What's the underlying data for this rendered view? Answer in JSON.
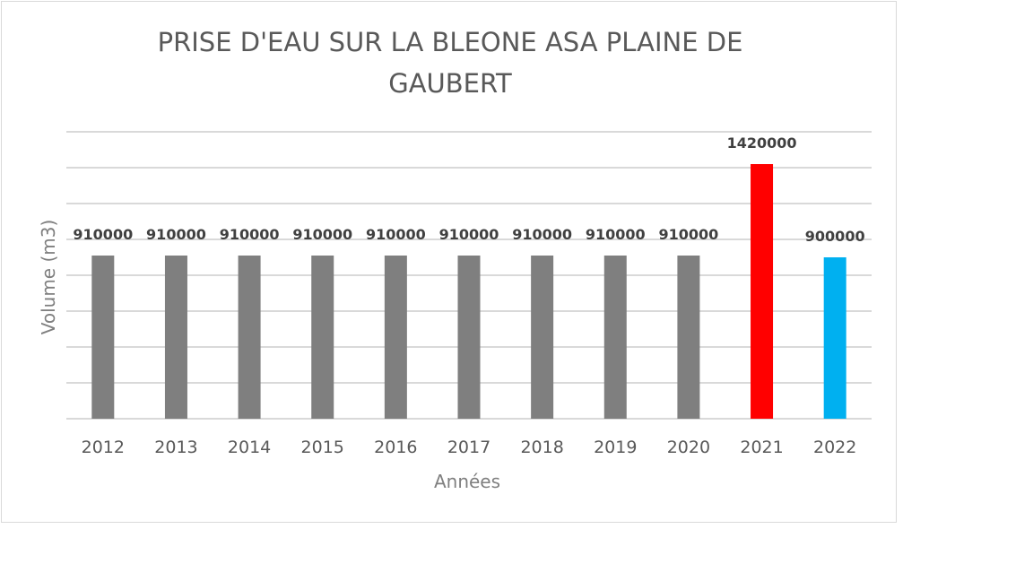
{
  "chart_data": {
    "type": "bar",
    "title": "PRISE D'EAU SUR LA BLEONE ASA PLAINE DE GAUBERT",
    "title_lines": [
      "PRISE D'EAU SUR LA BLEONE ASA PLAINE DE",
      "GAUBERT"
    ],
    "xlabel": "Années",
    "ylabel": "Volume (m3)",
    "categories": [
      "2012",
      "2013",
      "2014",
      "2015",
      "2016",
      "2017",
      "2018",
      "2019",
      "2020",
      "2021",
      "2022"
    ],
    "values": [
      910000,
      910000,
      910000,
      910000,
      910000,
      910000,
      910000,
      910000,
      910000,
      1420000,
      900000
    ],
    "data_labels": [
      "910000",
      "910000",
      "910000",
      "910000",
      "910000",
      "910000",
      "910000",
      "910000",
      "910000",
      "1420000",
      "900000"
    ],
    "colors": [
      "#7f7f7f",
      "#7f7f7f",
      "#7f7f7f",
      "#7f7f7f",
      "#7f7f7f",
      "#7f7f7f",
      "#7f7f7f",
      "#7f7f7f",
      "#7f7f7f",
      "#ff0000",
      "#00b0f0"
    ],
    "ylim": [
      0,
      1600000
    ],
    "grid": true,
    "gridline_step": 200000,
    "legend": "none"
  }
}
